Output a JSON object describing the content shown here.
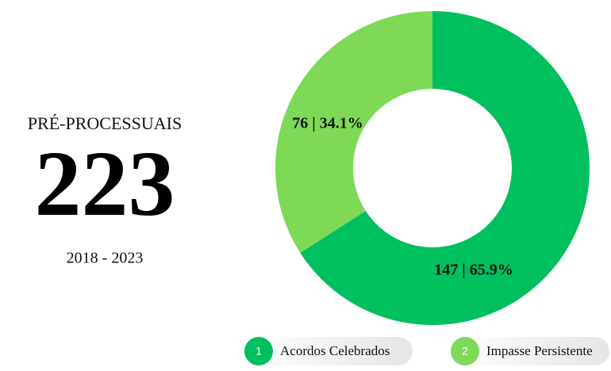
{
  "kpi": {
    "label": "PRÉ-PROCESSUAIS",
    "value": 223,
    "period": "2018 - 2023"
  },
  "chart_data": {
    "type": "donut",
    "categories": [
      "Acordos Celebrados",
      "Impasse Persistente"
    ],
    "values": [
      147,
      76
    ],
    "value_labels": [
      "147 | 65.9%",
      "76 | 34.1%"
    ],
    "colors": [
      "#00bf5f",
      "#7ed957"
    ],
    "legend_index": [
      1,
      2
    ]
  }
}
